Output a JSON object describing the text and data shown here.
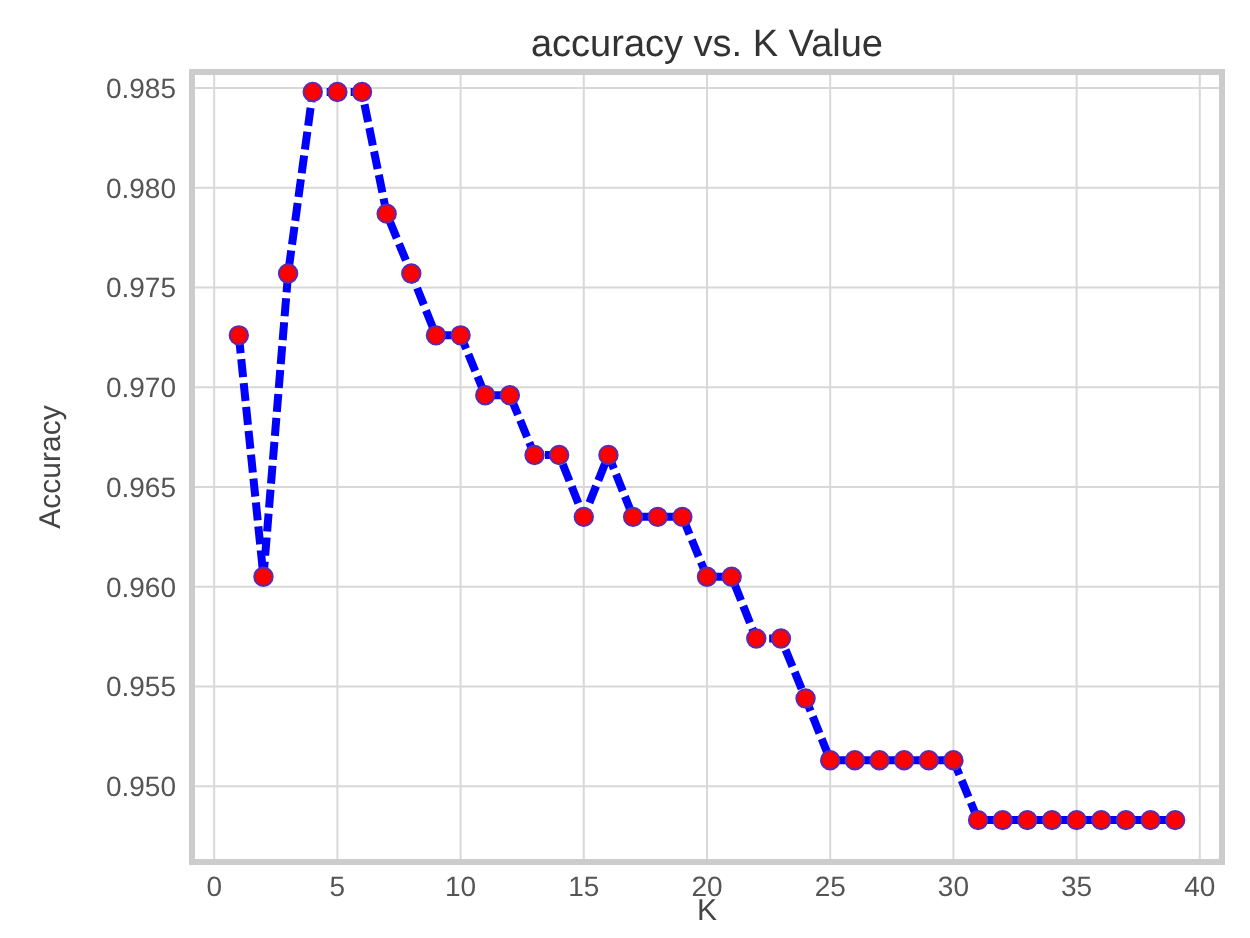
{
  "chart_data": {
    "type": "line",
    "title": "accuracy vs. K Value",
    "xlabel": "K",
    "ylabel": "Accuracy",
    "x": [
      1,
      2,
      3,
      4,
      5,
      6,
      7,
      8,
      9,
      10,
      11,
      12,
      13,
      14,
      15,
      16,
      17,
      18,
      19,
      20,
      21,
      22,
      23,
      24,
      25,
      26,
      27,
      28,
      29,
      30,
      31,
      32,
      33,
      34,
      35,
      36,
      37,
      38,
      39
    ],
    "series": [
      {
        "color": "#0000ff",
        "colors": [
          "#ff0000",
          "#ff0000",
          "#ff0000",
          "#ff0000",
          "#ff0000",
          "#ff0000",
          "#ff0000",
          "#ff0000",
          "#ff0000",
          "#ff0000",
          "#ff0000",
          "#ff0000",
          "#ff0000",
          "#ff0000",
          "#ff0000",
          "#ff0000",
          "#ff0000",
          "#ff0000",
          "#ff0000",
          "#ff0000",
          "#ff0000",
          "#ff0000",
          "#ff0000",
          "#ff0000",
          "#ff0000",
          "#ff0000",
          "#ff0000",
          "#ff0000",
          "#ff0000",
          "#ff0000",
          "#ff0000",
          "#ff0000",
          "#ff0000",
          "#ff0000",
          "#ff0000",
          "#ff0000",
          "#ff0000",
          "#ff0000",
          "#ff0000"
        ],
        "values": [
          0.9726,
          0.9605,
          0.9757,
          0.9848,
          0.9848,
          0.9848,
          0.9787,
          0.9757,
          0.9726,
          0.9726,
          0.9696,
          0.9696,
          0.9666,
          0.9666,
          0.9635,
          0.9666,
          0.9635,
          0.9635,
          0.9635,
          0.9605,
          0.9605,
          0.9574,
          0.9574,
          0.9544,
          0.9513,
          0.9513,
          0.9513,
          0.9513,
          0.9513,
          0.9513,
          0.9483,
          0.9483,
          0.9483,
          0.9483,
          0.9483,
          0.9483,
          0.9483,
          0.9483,
          0.9483
        ]
      }
    ],
    "xlim": [
      -0.9,
      40.9
    ],
    "xticks": [
      0,
      5,
      10,
      15,
      20,
      25,
      30,
      35,
      40
    ],
    "ylim": [
      0.9462,
      0.9858
    ],
    "yticks": [
      {
        "value": 0.95,
        "label": "0.950"
      },
      {
        "value": 0.955,
        "label": "0.955"
      },
      {
        "value": 0.96,
        "label": "0.960"
      },
      {
        "value": 0.965,
        "label": "0.965"
      },
      {
        "value": 0.97,
        "label": "0.970"
      },
      {
        "value": 0.975,
        "label": "0.975"
      },
      {
        "value": 0.98,
        "label": "0.980"
      },
      {
        "value": 0.985,
        "label": "0.985"
      }
    ],
    "grid": true,
    "marker": "circle",
    "line_style": "dashed"
  }
}
